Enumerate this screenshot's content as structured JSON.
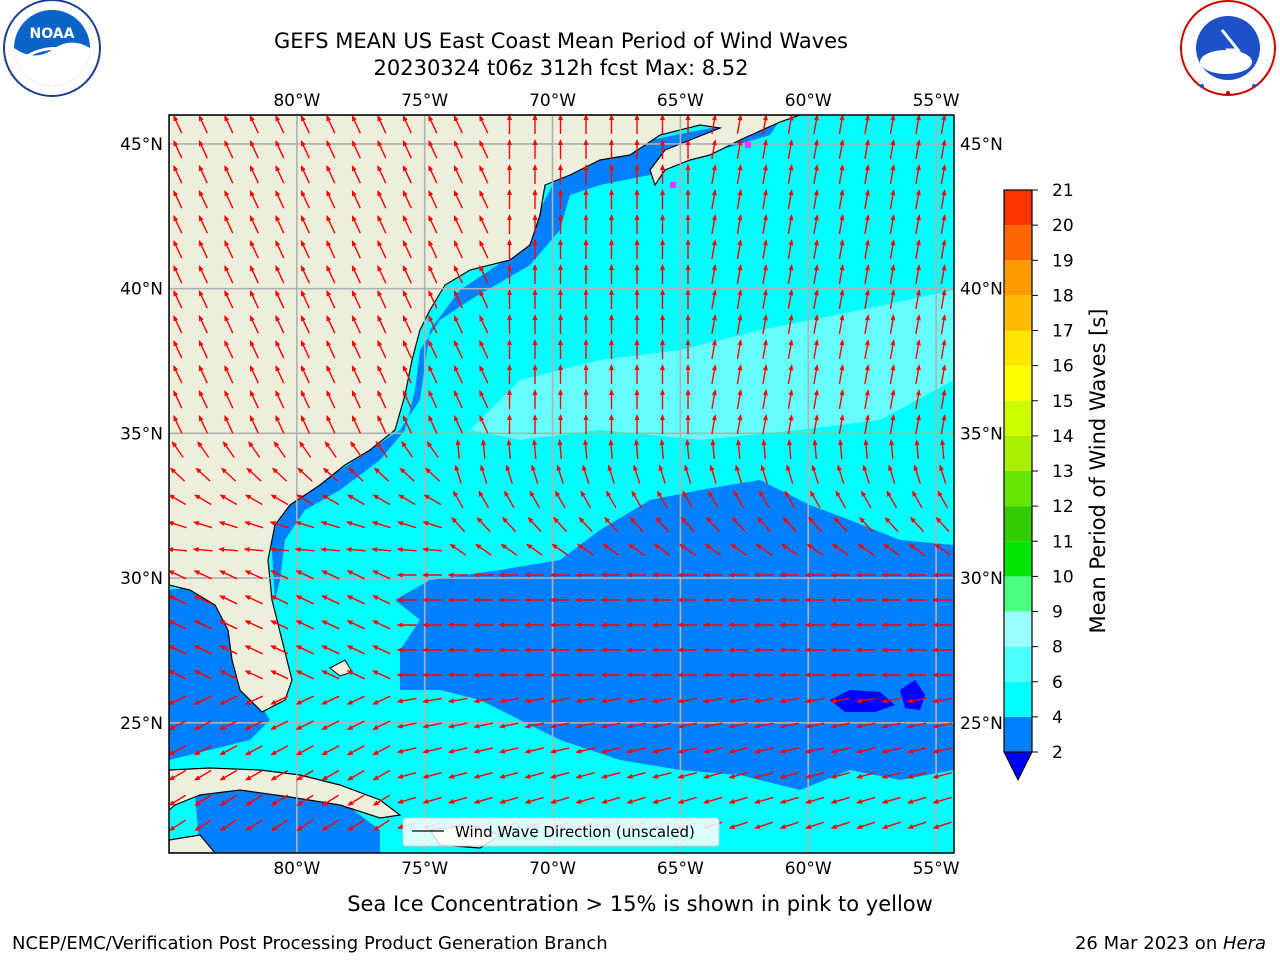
{
  "title": {
    "line1": "GEFS MEAN US East Coast Mean Period of Wind Waves",
    "line2": "20230324 t06z 312h fcst   Max: 8.52"
  },
  "logos": {
    "left": "NOAA",
    "left_ring": "NATIONAL OCEANIC AND ATMOSPHERIC ADMINISTRATION · U.S. DEPARTMENT OF COMMERCE",
    "right_ring": "NATIONAL WEATHER SERVICE"
  },
  "map": {
    "lon_labels": [
      "80°W",
      "75°W",
      "70°W",
      "65°W",
      "60°W",
      "55°W"
    ],
    "lat_labels": [
      "45°N",
      "40°N",
      "35°N",
      "30°N",
      "25°N"
    ],
    "lon_values": [
      -80,
      -75,
      -70,
      -65,
      -60,
      -55
    ],
    "lat_values": [
      45,
      40,
      35,
      30,
      25
    ],
    "extent": {
      "lon_min": -85,
      "lon_max": -54.3,
      "lat_min": 20.5,
      "lat_max": 46
    },
    "legend_label": "Wind Wave Direction (unscaled)",
    "colors": {
      "land": "#eeeedc",
      "ocean_4_6": "#00ffff",
      "ocean_6_8": "#66ffff",
      "ocean_2_4": "#0080ff",
      "ocean_lt2": "#0000ff",
      "arrow": "#ff0000",
      "grid": "#b0b0b0",
      "ice": "#ff33ff"
    }
  },
  "colorbar": {
    "label": "Mean Period of Wind Waves [s]",
    "ticks": [
      "2",
      "4",
      "6",
      "8",
      "9",
      "10",
      "11",
      "12",
      "13",
      "14",
      "15",
      "16",
      "17",
      "18",
      "19",
      "20",
      "21"
    ],
    "colors": [
      "#0080ff",
      "#00ffff",
      "#4dffff",
      "#99ffff",
      "#4dff80",
      "#00e600",
      "#33cc00",
      "#66e600",
      "#aaee00",
      "#ccff00",
      "#ffff00",
      "#ffe600",
      "#ffbb00",
      "#ff9900",
      "#ff6600",
      "#ff3300",
      "#ff0000"
    ],
    "under_color": "#0000ff"
  },
  "footer": {
    "sea_ice_note": "Sea Ice Concentration > 15% is shown in pink to yellow",
    "credit": "NCEP/EMC/Verification Post Processing Product Generation Branch",
    "date": "26 Mar 2023 on ",
    "machine": "Hera"
  }
}
